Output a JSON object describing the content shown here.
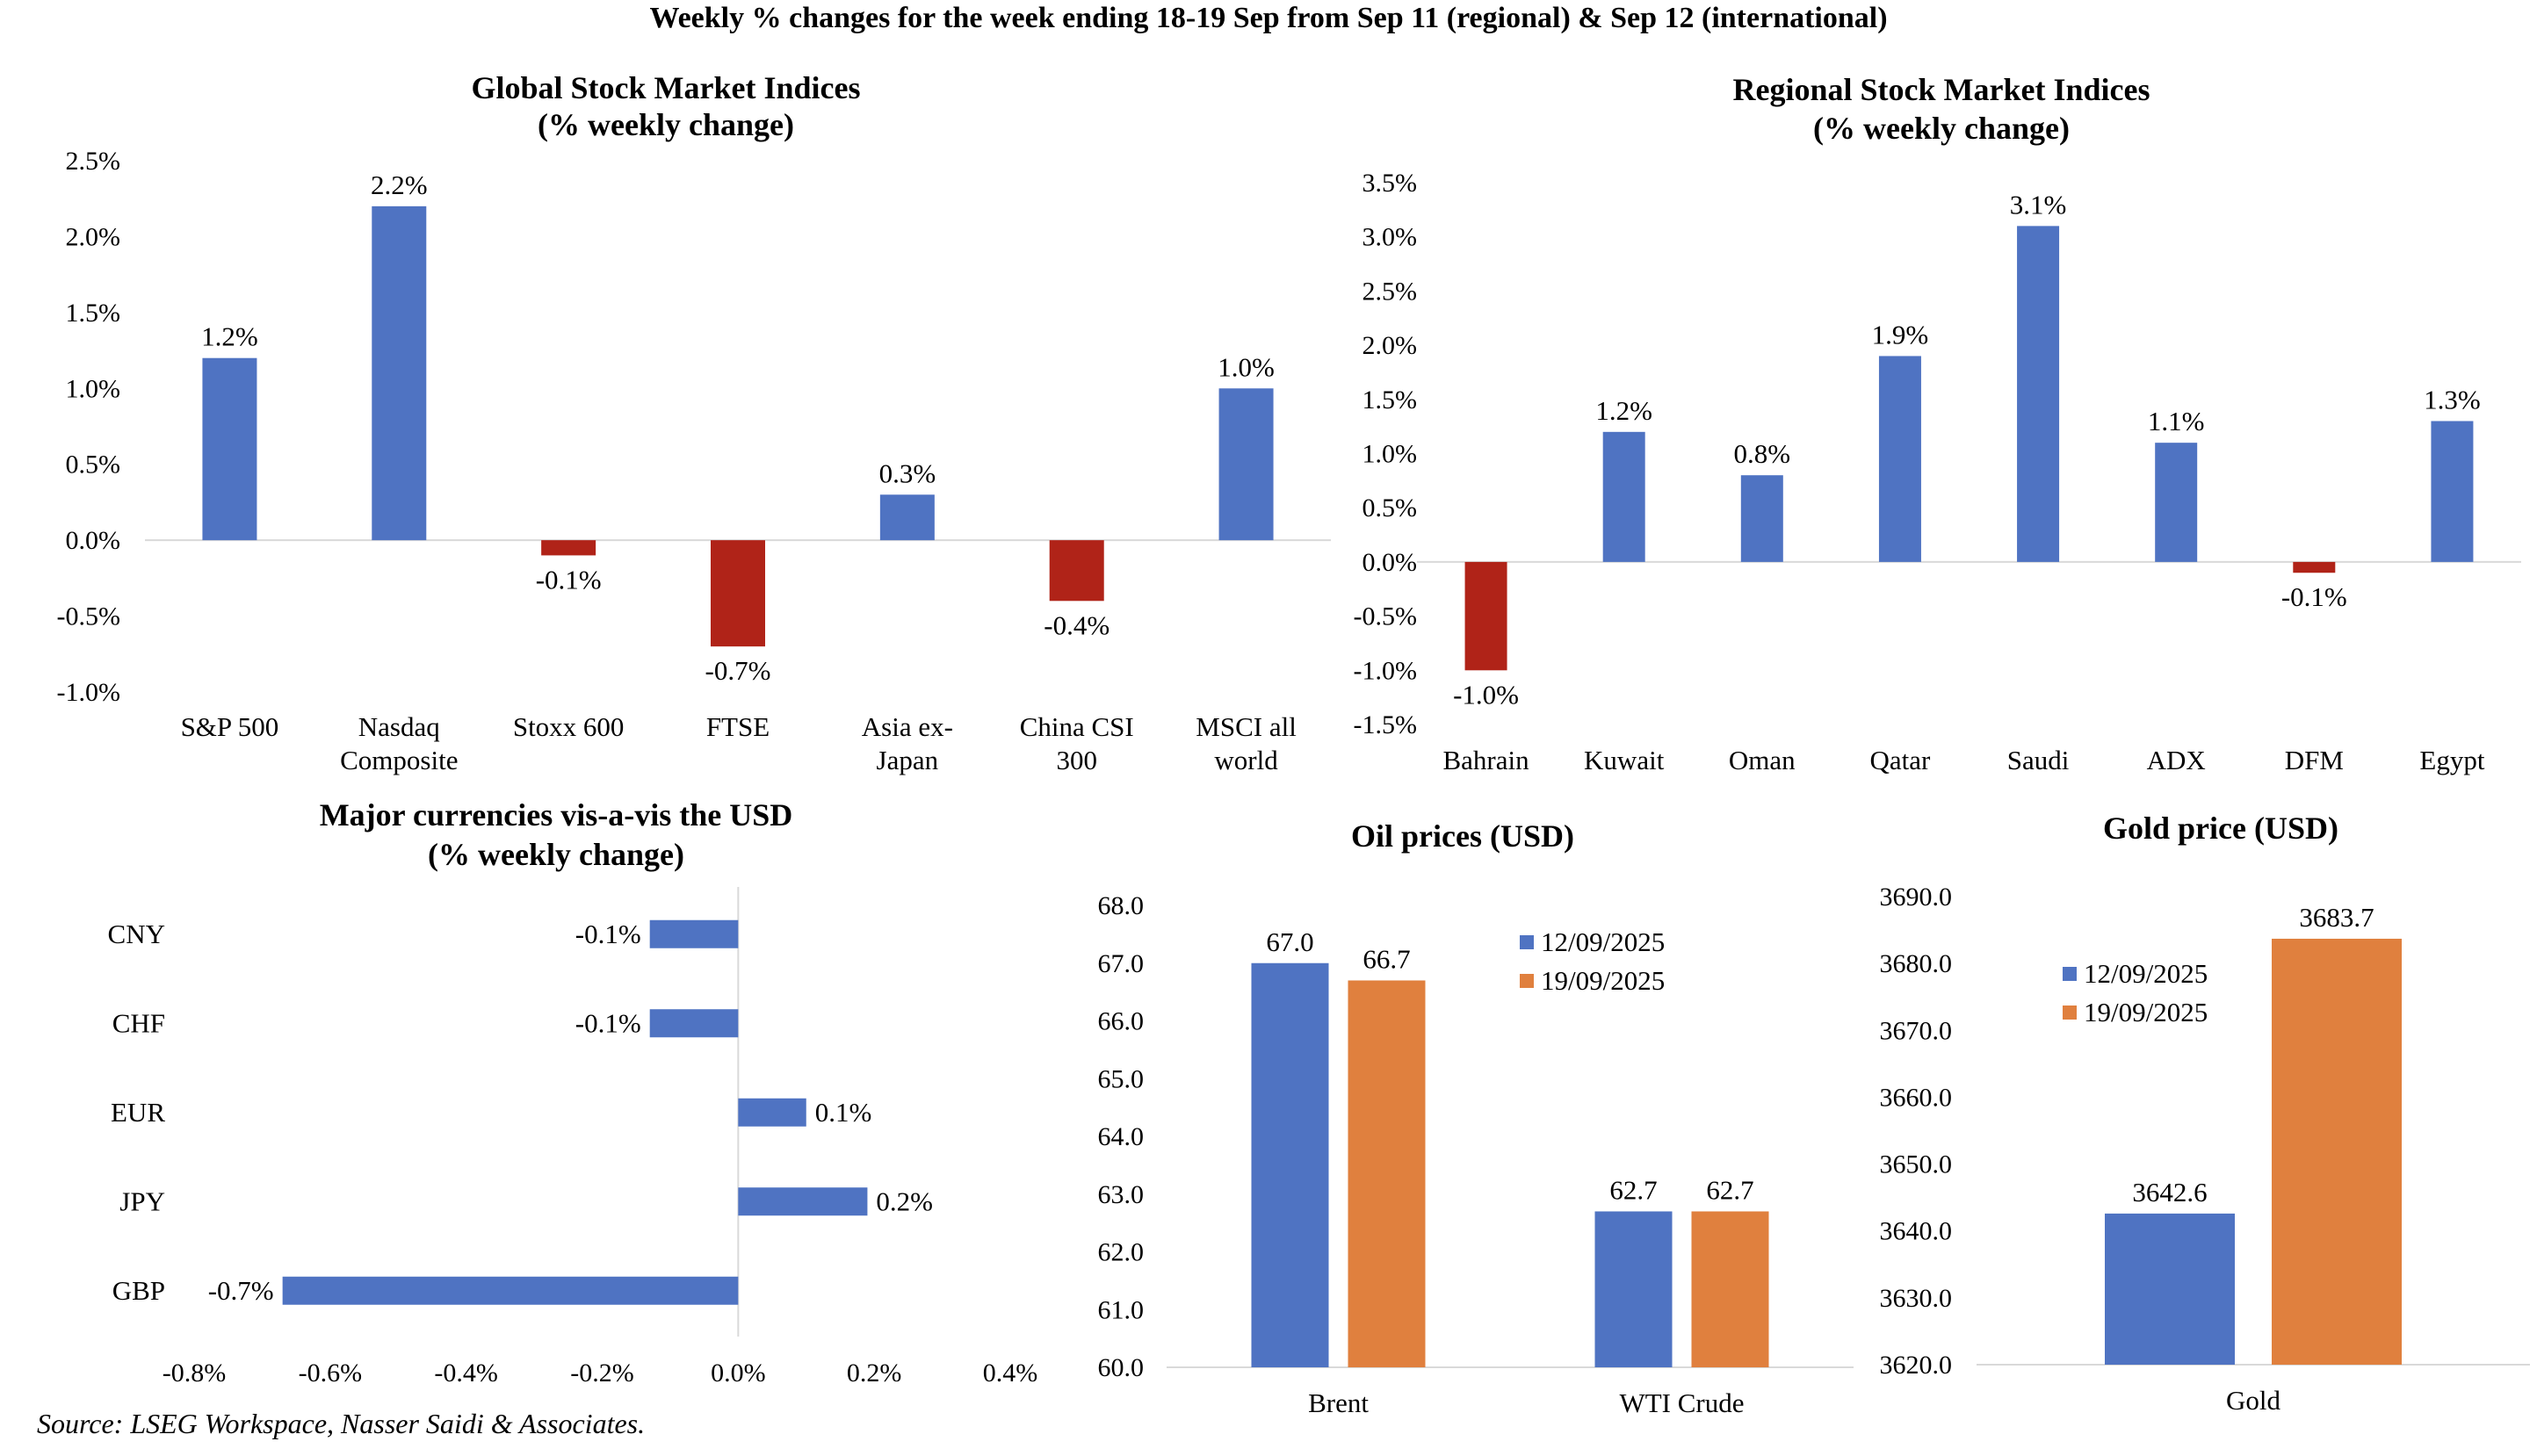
{
  "page_title": "Weekly % changes for the week ending 18-19 Sep from Sep 11 (regional) & Sep 12 (international)",
  "source": "Source: LSEG Workspace, Nasser Saidi & Associates.",
  "colors": {
    "positive": "#4f73c2",
    "negative": "#b02318",
    "series1": "#4f73c2",
    "series2": "#e0803e",
    "axis": "#d9d9d9"
  },
  "chart_data": [
    {
      "id": "global",
      "type": "bar",
      "title": "Global Stock Market Indices",
      "subtitle": "(% weekly change)",
      "categories": [
        [
          "S&P 500"
        ],
        [
          "Nasdaq",
          "Composite"
        ],
        [
          "Stoxx 600"
        ],
        [
          "FTSE"
        ],
        [
          "Asia ex-",
          "Japan"
        ],
        [
          "China CSI",
          "300"
        ],
        [
          "MSCI all",
          "world"
        ]
      ],
      "values": [
        1.2,
        2.2,
        -0.1,
        -0.7,
        0.3,
        -0.4,
        1.0
      ],
      "data_labels": [
        "1.2%",
        "2.2%",
        "-0.1%",
        "-0.7%",
        "0.3%",
        "-0.4%",
        "1.0%"
      ],
      "ylim": [
        -1.0,
        2.5
      ],
      "yticks": [
        -1.0,
        -0.5,
        0.0,
        0.5,
        1.0,
        1.5,
        2.0,
        2.5
      ],
      "ytick_labels": [
        "-1.0%",
        "-0.5%",
        "0.0%",
        "0.5%",
        "1.0%",
        "1.5%",
        "2.0%",
        "2.5%"
      ],
      "grid": false
    },
    {
      "id": "regional",
      "type": "bar",
      "title": "Regional Stock Market Indices",
      "subtitle": "(% weekly change)",
      "categories": [
        [
          "Bahrain"
        ],
        [
          "Kuwait"
        ],
        [
          "Oman"
        ],
        [
          "Qatar"
        ],
        [
          "Saudi"
        ],
        [
          "ADX"
        ],
        [
          "DFM"
        ],
        [
          "Egypt"
        ]
      ],
      "values": [
        -1.0,
        1.2,
        0.8,
        1.9,
        3.1,
        1.1,
        -0.1,
        1.3
      ],
      "data_labels": [
        "-1.0%",
        "1.2%",
        "0.8%",
        "1.9%",
        "3.1%",
        "1.1%",
        "-0.1%",
        "1.3%"
      ],
      "ylim": [
        -1.5,
        3.5
      ],
      "yticks": [
        -1.5,
        -1.0,
        -0.5,
        0.0,
        0.5,
        1.0,
        1.5,
        2.0,
        2.5,
        3.0,
        3.5
      ],
      "ytick_labels": [
        "-1.5%",
        "-1.0%",
        "-0.5%",
        "0.0%",
        "0.5%",
        "1.0%",
        "1.5%",
        "2.0%",
        "2.5%",
        "3.0%",
        "3.5%"
      ],
      "grid": false
    },
    {
      "id": "currencies",
      "type": "bar",
      "orientation": "horizontal",
      "title": "Major currencies vis-a-vis the USD",
      "subtitle": "(% weekly change)",
      "categories": [
        "CNY",
        "CHF",
        "EUR",
        "JPY",
        "GBP"
      ],
      "values": [
        -0.13,
        -0.13,
        0.1,
        0.19,
        -0.67
      ],
      "data_labels": [
        "-0.1%",
        "-0.1%",
        "0.1%",
        "0.2%",
        "-0.7%"
      ],
      "xlim": [
        -0.8,
        0.4
      ],
      "xticks": [
        -0.8,
        -0.6,
        -0.4,
        -0.2,
        0.0,
        0.2,
        0.4
      ],
      "xtick_labels": [
        "-0.8%",
        "-0.6%",
        "-0.4%",
        "-0.2%",
        "0.0%",
        "0.2%",
        "0.4%"
      ],
      "grid": false
    },
    {
      "id": "oil",
      "type": "bar",
      "title": "Oil prices (USD)",
      "categories": [
        "Brent",
        "WTI Crude"
      ],
      "series": [
        {
          "name": "12/09/2025",
          "values": [
            67.0,
            62.7
          ],
          "data_labels": [
            "67.0",
            "62.7"
          ]
        },
        {
          "name": "19/09/2025",
          "values": [
            66.7,
            62.7
          ],
          "data_labels": [
            "66.7",
            "62.7"
          ]
        }
      ],
      "ylim": [
        60.0,
        68.0
      ],
      "yticks": [
        60,
        61,
        62,
        63,
        64,
        65,
        66,
        67,
        68
      ],
      "ytick_labels": [
        "60.0",
        "61.0",
        "62.0",
        "63.0",
        "64.0",
        "65.0",
        "66.0",
        "67.0",
        "68.0"
      ],
      "legend": "top-right",
      "grid": false
    },
    {
      "id": "gold",
      "type": "bar",
      "title": "Gold price (USD)",
      "categories": [
        "Gold"
      ],
      "series": [
        {
          "name": "12/09/2025",
          "values": [
            3642.6
          ],
          "data_labels": [
            "3642.6"
          ]
        },
        {
          "name": "19/09/2025",
          "values": [
            3683.7
          ],
          "data_labels": [
            "3683.7"
          ]
        }
      ],
      "ylim": [
        3620.0,
        3690.0
      ],
      "yticks": [
        3620,
        3630,
        3640,
        3650,
        3660,
        3670,
        3680,
        3690
      ],
      "ytick_labels": [
        "3620.0",
        "3630.0",
        "3640.0",
        "3650.0",
        "3660.0",
        "3670.0",
        "3680.0",
        "3690.0"
      ],
      "legend": "top-left",
      "grid": false
    }
  ]
}
